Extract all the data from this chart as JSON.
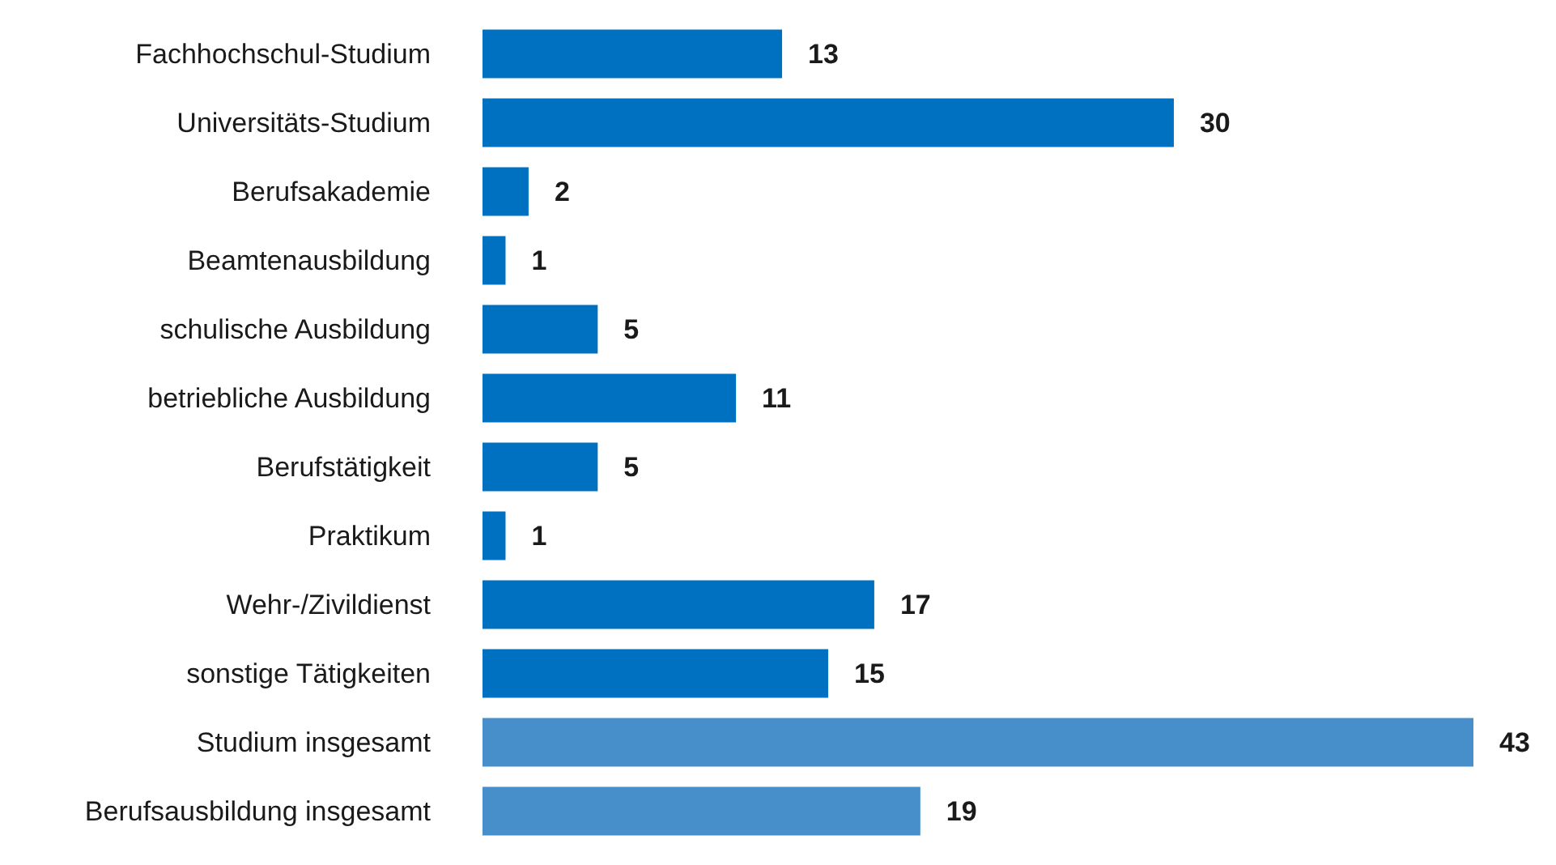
{
  "chart_data": {
    "type": "bar",
    "orientation": "horizontal",
    "categories": [
      "Fachhochschul-Studium",
      "Universitäts-Studium",
      "Berufsakademie",
      "Beamtenausbildung",
      "schulische Ausbildung",
      "betriebliche Ausbildung",
      "Berufstätigkeit",
      "Praktikum",
      "Wehr-/Zivildienst",
      "sonstige Tätigkeiten",
      "Studium insgesamt",
      "Berufsausbildung insgesamt"
    ],
    "values": [
      13,
      30,
      2,
      1,
      5,
      11,
      5,
      1,
      17,
      15,
      43,
      19
    ],
    "colors": [
      "#0070c0",
      "#0070c0",
      "#0070c0",
      "#0070c0",
      "#0070c0",
      "#0070c0",
      "#0070c0",
      "#0070c0",
      "#0070c0",
      "#0070c0",
      "#478fcb",
      "#478fcb"
    ],
    "data_labels": true
  }
}
